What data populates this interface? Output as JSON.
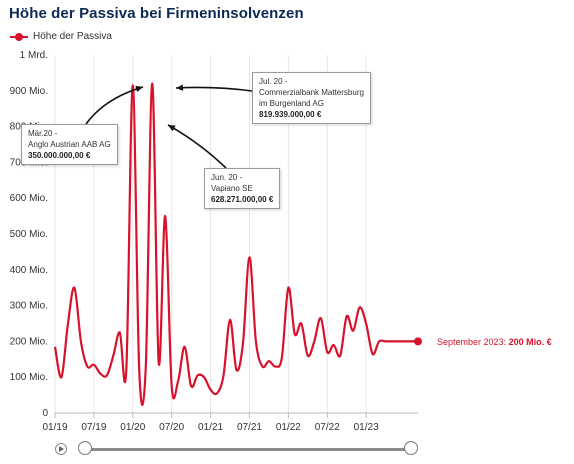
{
  "title": "Höhe der Passiva bei Firmeninsolvenzen",
  "legend": {
    "label": "Höhe der Passiva",
    "color": "#d8122c"
  },
  "last_point": {
    "label": "September 2023:",
    "value": "200 Mio. €"
  },
  "annotations": [
    {
      "date": "Mär.20 -",
      "name": "Anglo Austrian AAB AG",
      "amount": "350.000.000,00 €"
    },
    {
      "date": "Jul. 20 -",
      "name_line1": "Commerzialbank Mattersburg",
      "name_line2": "im Burgenland AG",
      "amount": "819.939.000,00 €"
    },
    {
      "date": "Jun. 20 -",
      "name": "Vapiano SE",
      "amount": "628.271.000,00 €"
    }
  ],
  "slider": {
    "play_icon": "play-icon"
  },
  "chart_data": {
    "type": "line",
    "title": "Höhe der Passiva bei Firmeninsolvenzen",
    "xlabel": "",
    "ylabel": "",
    "y_ticks": [
      "0",
      "100 Mio.",
      "200 Mio.",
      "300 Mio.",
      "400 Mio.",
      "500 Mio.",
      "600 Mio.",
      "700 Mio.",
      "800 Mio.",
      "900 Mio.",
      "1 Mrd."
    ],
    "ylim": [
      0,
      1000
    ],
    "unit": "Mio. €",
    "x_ticks": [
      "01/19",
      "07/19",
      "01/20",
      "07/20",
      "01/21",
      "07/21",
      "01/22",
      "07/22",
      "01/23"
    ],
    "grid": "vertical",
    "series": [
      {
        "name": "Höhe der Passiva",
        "color": "#d8122c",
        "x": [
          "01/19",
          "02/19",
          "03/19",
          "04/19",
          "05/19",
          "06/19",
          "07/19",
          "08/19",
          "09/19",
          "10/19",
          "11/19",
          "12/19",
          "01/20",
          "02/20",
          "03/20",
          "04/20",
          "05/20",
          "06/20",
          "07/20",
          "08/20",
          "09/20",
          "10/20",
          "11/20",
          "12/20",
          "01/21",
          "02/21",
          "03/21",
          "04/21",
          "05/21",
          "06/21",
          "07/21",
          "08/21",
          "09/21",
          "10/21",
          "11/21",
          "12/21",
          "01/22",
          "02/22",
          "03/22",
          "04/22",
          "05/22",
          "06/22",
          "07/22",
          "08/22",
          "09/22",
          "10/22",
          "11/22",
          "12/22",
          "01/23",
          "02/23",
          "03/23",
          "04/23",
          "05/23",
          "06/23",
          "07/23",
          "08/23",
          "09/23"
        ],
        "values": [
          185,
          100,
          250,
          350,
          200,
          130,
          135,
          110,
          105,
          160,
          225,
          120,
          915,
          115,
          130,
          920,
          140,
          550,
          75,
          90,
          185,
          75,
          105,
          100,
          65,
          55,
          105,
          260,
          120,
          195,
          435,
          200,
          130,
          145,
          130,
          155,
          350,
          220,
          250,
          160,
          200,
          265,
          170,
          190,
          160,
          270,
          230,
          295,
          250,
          165,
          200,
          200,
          200,
          200,
          200,
          200,
          200
        ]
      }
    ]
  }
}
